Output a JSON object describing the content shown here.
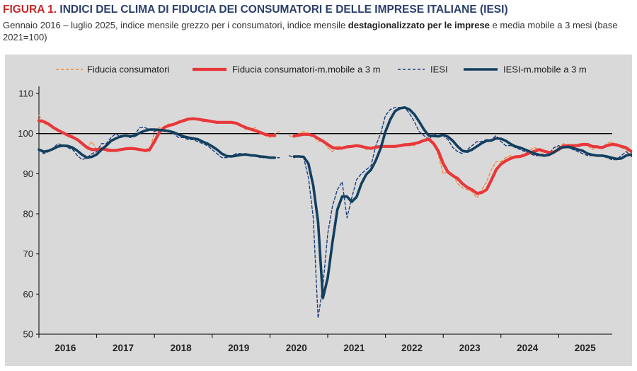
{
  "header": {
    "figure_label": "FIGURA 1.",
    "title": "INDICI DEL CLIMA DI FIDUCIA DEI CONSUMATORI E DELLE IMPRESE ITALIANE (IESI)",
    "subtitle_pre": "Gennaio 2016 – luglio 2025, indice mensile grezzo per i consumatori, indice mensile ",
    "subtitle_bold": "destagionalizzato per le imprese",
    "subtitle_post": " e media mobile a 3 mesi (base 2021=100)"
  },
  "colors": {
    "title_blue": "#2b3f6b",
    "figure_red": "#c62828",
    "consumer_raw": "#f08a3c",
    "consumer_ma": "#e8373a",
    "iesi_raw": "#1f3d7a",
    "iesi_ma": "#123f5e",
    "panel_bg": "#d9d9d9"
  },
  "chart_data": {
    "type": "line",
    "x_start": "2016-01",
    "x_end": "2025-07",
    "xtick_labels": [
      "2016",
      "2017",
      "2018",
      "2019",
      "2020",
      "2021",
      "2022",
      "2023",
      "2024",
      "2025"
    ],
    "yticks": [
      50,
      60,
      70,
      80,
      90,
      100,
      110
    ],
    "ylim": [
      50,
      110
    ],
    "reference_line": 100,
    "grid": false,
    "legend_position": "top",
    "series": [
      {
        "name": "Fiducia consumatori",
        "style": "dashed",
        "values": [
          104.6,
          102.6,
          102.0,
          101.5,
          101.0,
          100.0,
          99.5,
          99.5,
          98.5,
          97.5,
          96.5,
          98.0,
          96.0,
          96.5,
          95.5,
          95.5,
          96.0,
          96.0,
          96.0,
          96.5,
          96.0,
          96.0,
          95.5,
          95.5,
          100.5,
          101.5,
          101.5,
          102.5,
          102.0,
          103.0,
          103.5,
          103.5,
          104.0,
          103.5,
          103.0,
          103.0,
          103.0,
          102.5,
          103.0,
          103.0,
          103.0,
          102.5,
          102.0,
          101.0,
          101.0,
          101.5,
          100.0,
          99.5,
          99.0,
          100.0,
          100.5,
          99.5,
          99.5,
          99.0,
          100.0,
          100.5,
          100.0,
          99.5,
          98.0,
          98.5,
          96.5,
          95.5,
          97.0,
          96.5,
          96.5,
          97.0,
          97.0,
          97.0,
          96.0,
          96.5,
          96.5,
          97.0,
          97.0,
          96.5,
          97.0,
          97.0,
          97.5,
          97.0,
          97.0,
          98.0,
          98.5,
          99.0,
          98.0,
          94.5,
          90.0,
          90.5,
          90.0,
          87.5,
          86.5,
          86.0,
          85.5,
          84.0,
          86.0,
          88.0,
          91.0,
          93.0,
          93.0,
          94.0,
          94.5,
          94.0,
          94.5,
          95.0,
          96.0,
          96.5,
          96.0,
          94.5,
          95.0,
          96.5,
          96.5,
          97.5,
          97.0,
          96.5,
          97.5,
          97.5,
          97.0,
          96.0,
          97.0,
          96.5,
          97.5,
          98.0,
          97.0,
          96.5,
          96.0,
          94.5,
          95.0,
          95.5,
          96.5,
          96.0,
          96.5,
          97.0,
          97.0,
          97.0
        ],
        "gaps_note": "Dati non disponibili aprile 2020"
      },
      {
        "name": "Fiducia consumatori-m.mobile a 3 m",
        "style": "solid-thick",
        "values": [
          103.2,
          103.0,
          102.4,
          101.5,
          100.8,
          100.2,
          99.6,
          99.1,
          98.5,
          97.5,
          96.5,
          96.0,
          96.0,
          96.2,
          96.0,
          95.8,
          95.8,
          96.0,
          96.2,
          96.3,
          96.2,
          96.0,
          95.8,
          96.0,
          98.0,
          100.3,
          101.5,
          102.0,
          102.3,
          102.8,
          103.2,
          103.6,
          103.7,
          103.6,
          103.4,
          103.2,
          103.0,
          102.8,
          102.8,
          102.8,
          102.8,
          102.6,
          102.0,
          101.5,
          101.1,
          100.7,
          100.3,
          99.8,
          99.6,
          99.5,
          99.9,
          99.7,
          99.5,
          99.4,
          99.6,
          99.8,
          99.8,
          99.5,
          98.8,
          98.1,
          97.3,
          96.5,
          96.3,
          96.4,
          96.7,
          96.8,
          97.0,
          96.8,
          96.5,
          96.3,
          96.6,
          96.8,
          96.8,
          96.8,
          96.8,
          97.0,
          97.2,
          97.3,
          97.5,
          97.8,
          98.3,
          98.6,
          97.5,
          95.6,
          92.5,
          90.4,
          89.5,
          88.8,
          87.5,
          86.6,
          86.0,
          85.1,
          85.3,
          86.0,
          88.4,
          91.0,
          92.4,
          93.2,
          93.8,
          94.2,
          94.3,
          94.7,
          95.2,
          95.6,
          96.0,
          95.6,
          95.3,
          95.4,
          96.0,
          96.9,
          97.0,
          97.0,
          97.0,
          97.3,
          97.3,
          96.8,
          96.7,
          96.5,
          97.0,
          97.3,
          97.2,
          96.8,
          96.5,
          95.6,
          95.2,
          95.0,
          95.7,
          96.0,
          96.3,
          96.5,
          96.8,
          97.0
        ],
        "gaps_note": "Interruzione marzo–maggio 2020"
      },
      {
        "name": "IESI",
        "style": "dashed",
        "values": [
          96.0,
          95.0,
          95.5,
          96.5,
          97.5,
          97.0,
          96.5,
          96.0,
          94.5,
          93.5,
          94.0,
          95.0,
          95.5,
          97.5,
          97.5,
          99.0,
          100.0,
          99.0,
          99.5,
          99.0,
          100.0,
          101.5,
          101.5,
          101.0,
          100.5,
          101.0,
          100.5,
          100.5,
          100.0,
          99.0,
          99.0,
          98.5,
          98.5,
          98.0,
          97.5,
          97.0,
          96.0,
          95.0,
          94.0,
          94.0,
          94.5,
          95.0,
          95.0,
          94.5,
          94.5,
          94.5,
          94.0,
          94.0,
          94.0,
          94.0,
          94.0,
          94.5,
          94.5,
          94.0,
          94.5,
          94.0,
          89.0,
          79.0,
          54.0,
          62.0,
          75.0,
          82.0,
          86.0,
          88.0,
          79.0,
          84.0,
          88.5,
          90.0,
          91.0,
          92.0,
          97.0,
          100.0,
          104.5,
          106.0,
          106.5,
          106.5,
          106.5,
          105.0,
          103.0,
          100.5,
          99.5,
          98.5,
          100.0,
          99.5,
          99.5,
          98.5,
          96.5,
          95.5,
          95.0,
          96.0,
          97.0,
          98.0,
          98.0,
          98.5,
          98.5,
          99.5,
          98.0,
          97.0,
          97.0,
          96.5,
          96.0,
          95.5,
          95.0,
          94.5,
          94.5,
          94.5,
          95.0,
          96.5,
          97.0,
          96.5,
          96.5,
          96.0,
          95.5,
          95.0,
          94.5,
          94.5,
          94.5,
          94.5,
          94.0,
          93.5,
          93.5,
          94.5,
          95.5,
          94.5,
          93.0,
          91.0,
          92.0,
          93.5,
          94.0,
          93.5,
          93.5,
          93.5
        ],
        "gaps_note": "Dati non disponibili aprile 2020"
      },
      {
        "name": "IESI-m.mobile a 3 m",
        "style": "solid-thick",
        "values": [
          96.0,
          95.5,
          95.7,
          96.2,
          96.8,
          97.0,
          96.9,
          96.5,
          95.7,
          94.7,
          94.0,
          94.2,
          94.8,
          96.0,
          97.0,
          98.2,
          98.8,
          99.3,
          99.5,
          99.3,
          99.5,
          100.2,
          100.7,
          101.0,
          101.0,
          100.9,
          100.8,
          100.6,
          100.3,
          99.8,
          99.3,
          99.0,
          98.8,
          98.6,
          98.0,
          97.5,
          96.8,
          96.0,
          95.0,
          94.4,
          94.3,
          94.5,
          94.7,
          94.8,
          94.6,
          94.5,
          94.3,
          94.2,
          94.0,
          94.0,
          94.0,
          94.2,
          94.3,
          94.3,
          94.3,
          94.2,
          92.5,
          87.0,
          78.0,
          59.0,
          64.0,
          73.0,
          81.0,
          84.3,
          84.3,
          83.0,
          84.2,
          87.5,
          89.8,
          91.0,
          93.3,
          96.3,
          100.5,
          103.5,
          105.6,
          106.3,
          106.5,
          106.0,
          104.8,
          103.0,
          101.0,
          99.5,
          99.4,
          99.3,
          99.7,
          99.2,
          98.2,
          96.8,
          95.7,
          95.5,
          96.0,
          96.8,
          97.6,
          98.2,
          98.3,
          98.8,
          98.7,
          98.2,
          97.4,
          96.8,
          96.5,
          96.0,
          95.5,
          95.0,
          94.7,
          94.5,
          94.7,
          95.3,
          96.2,
          96.6,
          96.7,
          96.4,
          96.0,
          95.7,
          95.0,
          94.7,
          94.5,
          94.5,
          94.3,
          94.0,
          93.7,
          93.8,
          94.5,
          94.8,
          94.4,
          93.0,
          92.0,
          92.2,
          93.0,
          93.3,
          93.7,
          93.5
        ],
        "gaps_note": "Interruzione marzo–maggio 2020"
      }
    ]
  }
}
